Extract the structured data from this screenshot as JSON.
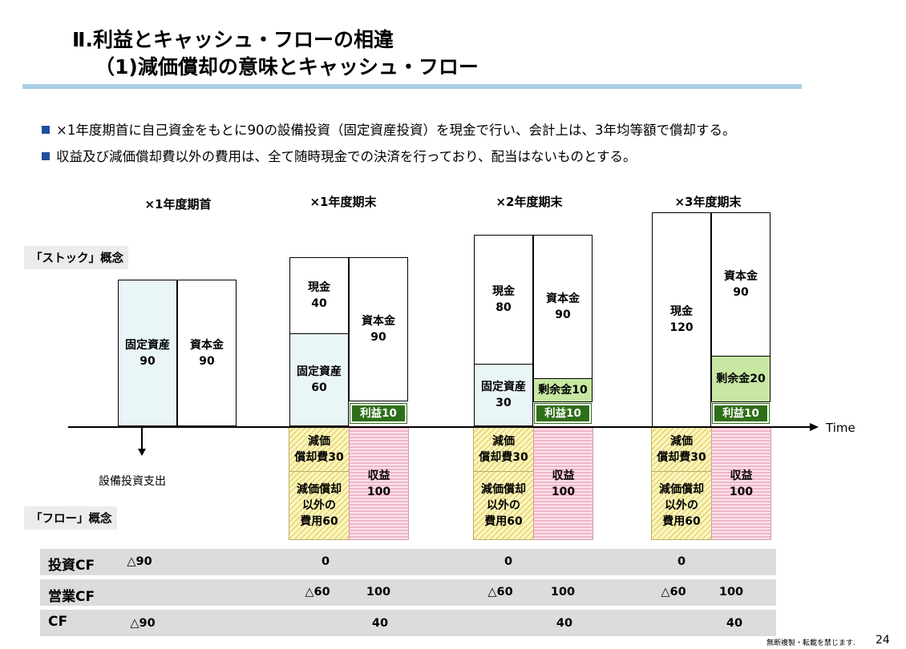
{
  "slide": {
    "title_line1": "Ⅱ.利益とキャッシュ・フローの相違",
    "title_line2": "（1)減価償却の意味とキャッシュ・フロー",
    "bullets": [
      "×1年度期首に自己資金をもとに90の設備投資（固定資産投資）を現金で行い、会計上は、3年均等額で償却する。",
      "収益及び減価償却費以外の費用は、全て随時現金での決済を行っており、配当はないものとする。"
    ],
    "footer": "無断複製・転載を禁じます.",
    "page_number": "24"
  },
  "diagram": {
    "periods": [
      "×1年度期首",
      "×1年度期末",
      "×2年度期末",
      "×3年度期末"
    ],
    "stock_label": "「ストック」概念",
    "flow_label": "「フロー」概念",
    "time_label": "Time",
    "capex_label": "設備投資支出",
    "start": {
      "fixed_assets": {
        "label": "固定資産",
        "value": "90"
      },
      "capital": {
        "label": "資本金",
        "value": "90"
      }
    },
    "y1": {
      "cash": {
        "label": "現金",
        "value": "40"
      },
      "fixed_assets": {
        "label": "固定資産",
        "value": "60"
      },
      "capital": {
        "label": "資本金",
        "value": "90"
      },
      "profit": "利益10",
      "depreciation": "減価償却費30",
      "other_cost_line1": "減価償却",
      "other_cost_line2": "以外の",
      "other_cost_line3": "費用60",
      "revenue": {
        "label": "収益",
        "value": "100"
      }
    },
    "y2": {
      "cash": {
        "label": "現金",
        "value": "80"
      },
      "fixed_assets": {
        "label": "固定資産",
        "value": "30"
      },
      "capital": {
        "label": "資本金",
        "value": "90"
      },
      "surplus": "剰余金10",
      "profit": "利益10",
      "depreciation": "減価償却費30",
      "other_cost_line1": "減価償却",
      "other_cost_line2": "以外の",
      "other_cost_line3": "費用60",
      "revenue": {
        "label": "収益",
        "value": "100"
      }
    },
    "y3": {
      "cash": {
        "label": "現金",
        "value": "120"
      },
      "capital": {
        "label": "資本金",
        "value": "90"
      },
      "surplus": "剰余金20",
      "profit": "利益10",
      "depreciation": "減価償却費30",
      "other_cost_line1": "減価償却",
      "other_cost_line2": "以外の",
      "other_cost_line3": "費用60",
      "revenue": {
        "label": "収益",
        "value": "100"
      }
    },
    "depreciation_line1": "減価",
    "depreciation_line2": "償却費30"
  },
  "cashflow": {
    "investing": {
      "label": "投資CF",
      "start": "△90",
      "y1": "0",
      "y2": "0",
      "y3": "0"
    },
    "operating": {
      "label": "営業CF",
      "y1_out": "△60",
      "y1_in": "100",
      "y2_out": "△60",
      "y2_in": "100",
      "y3_out": "△60",
      "y3_in": "100"
    },
    "total": {
      "label": "CF",
      "start": "△90",
      "y1": "40",
      "y2": "40",
      "y3": "40"
    }
  }
}
